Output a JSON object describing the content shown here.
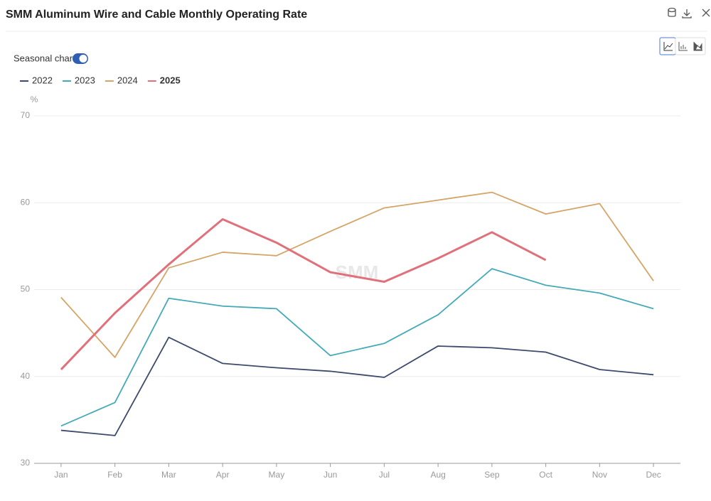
{
  "chart_data": {
    "type": "line",
    "title": "SMM Aluminum Wire and Cable Monthly Operating Rate",
    "toggle_label": "Seasonal charts",
    "y_unit": "%",
    "watermark": "SMM",
    "categories": [
      "Jan",
      "Feb",
      "Mar",
      "Apr",
      "May",
      "Jun",
      "Jul",
      "Aug",
      "Sep",
      "Oct",
      "Nov",
      "Dec"
    ],
    "series": [
      {
        "name": "2022",
        "color": "#3d4a6b",
        "line_width": 1.8,
        "values": [
          33.8,
          33.2,
          44.5,
          41.5,
          41.0,
          40.6,
          39.9,
          43.5,
          43.3,
          42.8,
          40.8,
          40.2
        ]
      },
      {
        "name": "2023",
        "color": "#45aab8",
        "line_width": 1.8,
        "values": [
          34.3,
          37.0,
          49.0,
          48.1,
          47.8,
          42.4,
          43.8,
          47.1,
          52.4,
          50.5,
          49.6,
          47.8
        ]
      },
      {
        "name": "2024",
        "color": "#d4a566",
        "line_width": 1.8,
        "values": [
          49.1,
          42.2,
          52.5,
          54.3,
          53.9,
          56.7,
          59.4,
          60.3,
          61.2,
          58.7,
          59.9,
          51.0
        ]
      },
      {
        "name": "2025",
        "color": "#e0707a",
        "line_width": 3,
        "values": [
          40.8,
          47.3,
          52.9,
          58.1,
          55.4,
          52.0,
          50.9,
          53.6,
          56.6,
          53.4,
          null,
          null
        ]
      }
    ],
    "ylim": [
      30,
      70
    ],
    "yticks": [
      30,
      40,
      50,
      60,
      70
    ],
    "grid": true
  }
}
